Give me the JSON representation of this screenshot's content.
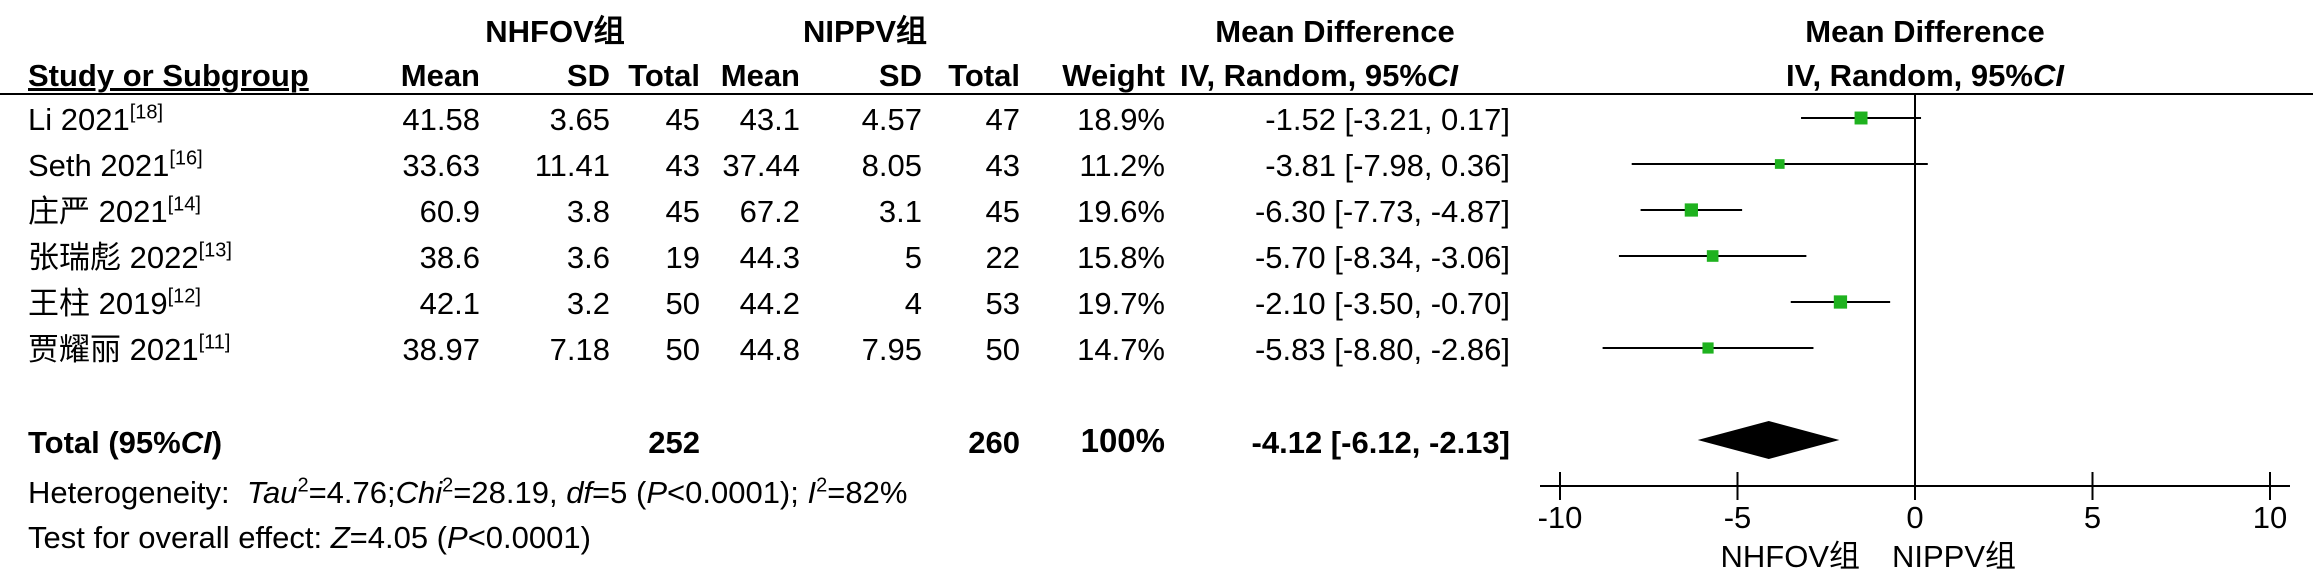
{
  "header": {
    "group1": "NHFOV组",
    "group2": "NIPPV组",
    "md_col_title": "Mean Difference",
    "md_col_sub_prefix": "IV, Random, 95%",
    "md_col_sub_ci": "CI",
    "plot_title": "Mean Difference",
    "plot_sub_prefix": "IV, Random, 95%",
    "plot_sub_ci": "CI",
    "study": "Study or Subgroup",
    "mean1": "Mean",
    "sd1": "SD",
    "total1": "Total",
    "mean2": "Mean",
    "sd2": "SD",
    "total2": "Total",
    "weight": "Weight"
  },
  "studies": [
    {
      "name": "Li 2021",
      "ref": "[18]",
      "mean1": "41.58",
      "sd1": "3.65",
      "n1": "45",
      "mean2": "43.1",
      "sd2": "4.57",
      "n2": "47",
      "weight": "18.9%",
      "md_text": "-1.52 [-3.21, 0.17]"
    },
    {
      "name": "Seth 2021",
      "ref": "[16]",
      "mean1": "33.63",
      "sd1": "11.41",
      "n1": "43",
      "mean2": "37.44",
      "sd2": "8.05",
      "n2": "43",
      "weight": "11.2%",
      "md_text": "-3.81 [-7.98, 0.36]"
    },
    {
      "name": "庄严 2021",
      "ref": "[14]",
      "mean1": "60.9",
      "sd1": "3.8",
      "n1": "45",
      "mean2": "67.2",
      "sd2": "3.1",
      "n2": "45",
      "weight": "19.6%",
      "md_text": "-6.30 [-7.73, -4.87]"
    },
    {
      "name": "张瑞彪 2022",
      "ref": "[13]",
      "mean1": "38.6",
      "sd1": "3.6",
      "n1": "19",
      "mean2": "44.3",
      "sd2": "5",
      "n2": "22",
      "weight": "15.8%",
      "md_text": "-5.70 [-8.34, -3.06]"
    },
    {
      "name": "王柱 2019",
      "ref": "[12]",
      "mean1": "42.1",
      "sd1": "3.2",
      "n1": "50",
      "mean2": "44.2",
      "sd2": "4",
      "n2": "53",
      "weight": "19.7%",
      "md_text": "-2.10 [-3.50, -0.70]"
    },
    {
      "name": "贾耀丽 2021",
      "ref": "[11]",
      "mean1": "38.97",
      "sd1": "7.18",
      "n1": "50",
      "mean2": "44.8",
      "sd2": "7.95",
      "n2": "50",
      "weight": "14.7%",
      "md_text": "-5.83 [-8.80, -2.86]"
    }
  ],
  "total": {
    "label_prefix": "Total (95%",
    "label_ci": "CI",
    "label_suffix": ")",
    "n1": "252",
    "n2": "260",
    "weight": "100%",
    "md_text": "-4.12 [-6.12, -2.13]"
  },
  "heterogeneity": {
    "label": "Heterogeneity:",
    "tau_sym": "Tau",
    "tau_val": "=4.76;",
    "chi_sym": "Chi",
    "chi_val": "=28.19,",
    "df_sym": "df",
    "df_val": "=5 (",
    "p_sym": "P",
    "p_val": "<0.0001);",
    "i_sym": "I",
    "i_val": "=82%",
    "sq": "2"
  },
  "overall": {
    "label": "Test for overall effect:",
    "z_sym": "Z",
    "z_val": "=4.05 (",
    "p_sym": "P",
    "p_val": "<0.0001)"
  },
  "axis": {
    "favours_left": "NHFOV组",
    "favours_right": "NIPPV组"
  },
  "chart_data": {
    "type": "forest",
    "x_range": [
      -10,
      10
    ],
    "ticks": [
      -10,
      -5,
      0,
      5,
      10
    ],
    "tick_labels": [
      "-10",
      "-5",
      "0",
      "5",
      "10"
    ],
    "studies": [
      {
        "md": -1.52,
        "lo": -3.21,
        "hi": 0.17,
        "weight": 18.9
      },
      {
        "md": -3.81,
        "lo": -7.98,
        "hi": 0.36,
        "weight": 11.2
      },
      {
        "md": -6.3,
        "lo": -7.73,
        "hi": -4.87,
        "weight": 19.6
      },
      {
        "md": -5.7,
        "lo": -8.34,
        "hi": -3.06,
        "weight": 15.8
      },
      {
        "md": -2.1,
        "lo": -3.5,
        "hi": -0.7,
        "weight": 19.7
      },
      {
        "md": -5.83,
        "lo": -8.8,
        "hi": -2.86,
        "weight": 14.7
      }
    ],
    "pooled": {
      "md": -4.12,
      "lo": -6.12,
      "hi": -2.13
    },
    "marker_color": "#1fb21f",
    "diamond_color": "#000000"
  }
}
